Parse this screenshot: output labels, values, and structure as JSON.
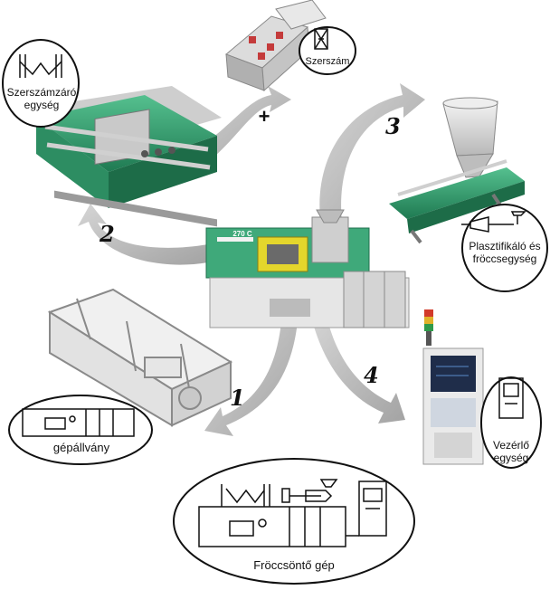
{
  "labels": {
    "clamping_unit": "Szerszámzáró\negység",
    "mold": "Szerszám",
    "plasticizing_unit": "Plasztifikáló és\nfröccsegység",
    "control_unit": "Vezérlő\negység",
    "machine_frame": "gépállvány",
    "injection_machine": "Fröccsöntő gép",
    "plus_sign": "+"
  },
  "steps": [
    "1",
    "2",
    "3",
    "4"
  ],
  "machine_badge": "270 C",
  "colors": {
    "arrow": "#b9b9b9",
    "arrow_dark": "#8f8f8f",
    "machine_green": "#3aa879",
    "machine_green_dark": "#217a53",
    "machine_yellow": "#e5d92a",
    "panel_gray": "#d8d8d8",
    "line": "#111111"
  },
  "icons": {
    "clamping": "toggle-clamp-icon",
    "mold": "mold-icon",
    "injection": "injection-screw-icon",
    "control": "control-panel-icon",
    "frame": "machine-frame-icon"
  }
}
